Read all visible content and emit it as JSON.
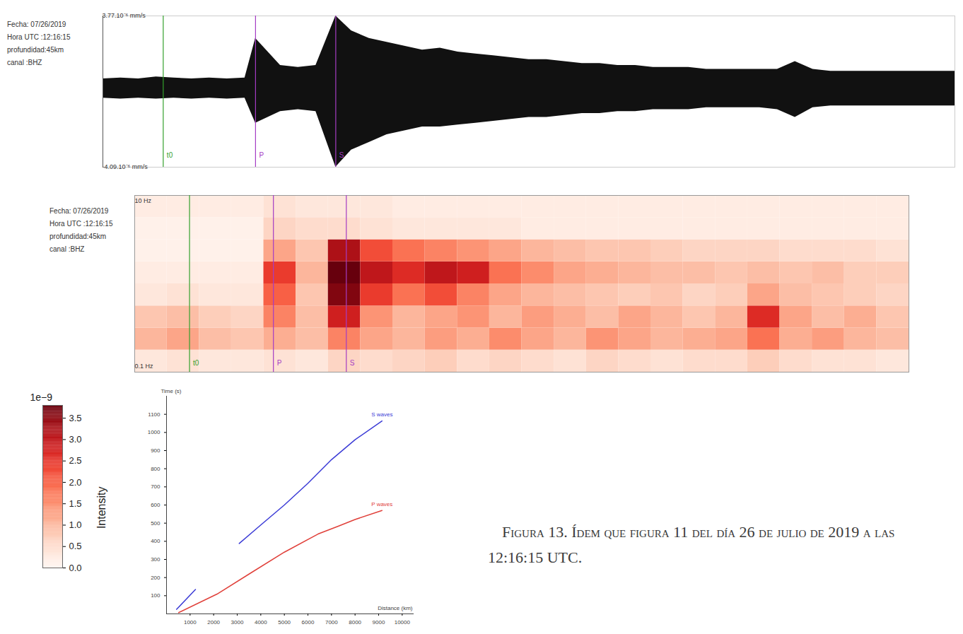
{
  "caption": "Figura 13. Ídem que figura 11 del día 26 de julio de 2019 a las 12:16:15 UTC.",
  "chart_data": [
    {
      "type": "area",
      "annotations": [
        "Fecha: 07/26/2019",
        "Hora UTC :12:16:15",
        "profundidad:45km",
        "canal :BHZ"
      ],
      "x": [
        -85,
        -60,
        -35,
        -10,
        15,
        40,
        65,
        90,
        115,
        130,
        165,
        190,
        215,
        243,
        265,
        290,
        315,
        340,
        365,
        390,
        415,
        440,
        465,
        490,
        515,
        540,
        565,
        590,
        615,
        640,
        665,
        690,
        715,
        740,
        765,
        790,
        815,
        840,
        865,
        890,
        915,
        940,
        965,
        990,
        1015,
        1040,
        1065,
        1090,
        1115
      ],
      "values_max": [
        0.5,
        0.55,
        0.5,
        0.6,
        0.55,
        0.5,
        0.55,
        0.5,
        0.55,
        2.6,
        1.2,
        1.1,
        1.2,
        3.77,
        3.0,
        2.6,
        2.4,
        2.2,
        2.0,
        2.1,
        1.9,
        1.8,
        1.7,
        1.6,
        1.5,
        1.5,
        1.4,
        1.3,
        1.3,
        1.2,
        1.2,
        1.1,
        1.1,
        1.1,
        1.0,
        1.0,
        1.0,
        1.0,
        1.0,
        1.4,
        1.0,
        0.9,
        0.9,
        0.9,
        0.9,
        0.9,
        0.9,
        0.9,
        0.9
      ],
      "values_min": [
        -0.5,
        -0.55,
        -0.5,
        -0.55,
        -0.5,
        -0.55,
        -0.5,
        -0.55,
        -0.5,
        -1.8,
        -1.2,
        -1.1,
        -1.2,
        -4.09,
        -3.2,
        -2.8,
        -2.4,
        -2.2,
        -2.0,
        -2.0,
        -1.9,
        -1.8,
        -1.7,
        -1.6,
        -1.5,
        -1.5,
        -1.4,
        -1.3,
        -1.3,
        -1.2,
        -1.2,
        -1.1,
        -1.1,
        -1.1,
        -1.0,
        -1.0,
        -1.0,
        -1.0,
        -1.1,
        -1.5,
        -1.0,
        -0.9,
        -0.9,
        -0.9,
        -0.9,
        -0.9,
        -0.9,
        -0.9,
        -0.9
      ],
      "color": "#111111",
      "xlim": [
        -85,
        1115
      ],
      "ylim": [
        -4.09,
        3.77
      ],
      "yticks": [
        {
          "value": -4.09,
          "label": "-4.09.10⁻⁶ mm/s"
        },
        {
          "value": 3.77,
          "label": "3.77.10⁻⁶ mm/s"
        }
      ],
      "tick_labels": "y",
      "markers": [
        {
          "label": "t0",
          "x": 0,
          "color": "#33a02c"
        },
        {
          "label": "P",
          "x": 130,
          "color": "#a53cc4"
        },
        {
          "label": "S",
          "x": 243,
          "color": "#a53cc4"
        }
      ]
    },
    {
      "type": "heatmap",
      "annotations": [
        "Fecha: 07/26/2019",
        "Hora UTC :12:16:15",
        "profundidad:45km",
        "canal :BHZ"
      ],
      "x_bins": [
        -85,
        -35,
        15,
        65,
        115,
        165,
        215,
        265,
        315,
        365,
        415,
        465,
        515,
        565,
        615,
        665,
        715,
        765,
        815,
        865,
        915,
        965,
        1015,
        1065,
        1115
      ],
      "y_bins": [
        0.1,
        0.178,
        0.316,
        0.562,
        1,
        1.78,
        3.16,
        5.62,
        10
      ],
      "intensity": [
        [
          0.3,
          0.4,
          0.3,
          0.3,
          0.4,
          0.3,
          0.6,
          0.5,
          0.6,
          0.7,
          0.5,
          0.6,
          0.5,
          0.4,
          0.6,
          0.5,
          0.4,
          0.5,
          0.5,
          0.7,
          0.5,
          0.4,
          0.4,
          0.3
        ],
        [
          1.0,
          1.2,
          0.9,
          0.8,
          1.1,
          0.9,
          1.6,
          1.2,
          1.0,
          1.3,
          1.1,
          1.5,
          1.2,
          1.0,
          1.4,
          1.2,
          1.0,
          1.1,
          1.2,
          1.8,
          1.1,
          1.3,
          1.0,
          0.9
        ],
        [
          0.8,
          0.9,
          0.7,
          0.6,
          1.6,
          0.9,
          2.8,
          1.4,
          1.0,
          1.2,
          1.4,
          1.0,
          1.3,
          1.1,
          0.9,
          1.2,
          1.0,
          0.8,
          1.0,
          2.6,
          1.2,
          0.9,
          1.1,
          0.8
        ],
        [
          0.3,
          0.4,
          0.3,
          0.3,
          2.0,
          0.8,
          3.6,
          2.4,
          1.8,
          2.2,
          1.6,
          1.2,
          1.0,
          0.9,
          0.8,
          0.7,
          0.8,
          0.6,
          0.7,
          1.2,
          0.9,
          0.8,
          0.7,
          0.6
        ],
        [
          0.2,
          0.2,
          0.2,
          0.2,
          2.4,
          1.0,
          3.8,
          3.0,
          2.6,
          3.0,
          2.8,
          1.8,
          1.5,
          1.2,
          1.1,
          1.0,
          0.9,
          0.9,
          0.8,
          0.9,
          0.8,
          0.9,
          0.7,
          0.7
        ],
        [
          0.1,
          0.1,
          0.1,
          0.1,
          1.2,
          0.8,
          3.2,
          2.2,
          1.8,
          1.6,
          1.4,
          1.2,
          1.0,
          0.9,
          0.8,
          0.8,
          0.7,
          0.6,
          0.6,
          0.6,
          0.5,
          0.5,
          0.5,
          0.4
        ],
        [
          0.1,
          0.1,
          0.1,
          0.1,
          0.6,
          0.5,
          0.5,
          0.4,
          0.3,
          0.3,
          0.3,
          0.3,
          0.2,
          0.2,
          0.2,
          0.2,
          0.2,
          0.2,
          0.2,
          0.2,
          0.2,
          0.2,
          0.2,
          0.2
        ],
        [
          0.2,
          0.2,
          0.2,
          0.2,
          0.4,
          0.3,
          0.3,
          0.3,
          0.2,
          0.2,
          0.2,
          0.2,
          0.2,
          0.2,
          0.2,
          0.2,
          0.2,
          0.2,
          0.2,
          0.2,
          0.2,
          0.2,
          0.2,
          0.2
        ]
      ],
      "xlim": [
        -85,
        1115
      ],
      "ylim": [
        0.1,
        10
      ],
      "log": "y",
      "yticks": [
        {
          "value": 0.1,
          "label": "0.1 Hz"
        },
        {
          "value": 10,
          "label": "10 Hz"
        }
      ],
      "tick_labels": "y",
      "markers": [
        {
          "label": "t0",
          "x": 0,
          "color": "#33a02c"
        },
        {
          "label": "P",
          "x": 130,
          "color": "#a53cc4"
        },
        {
          "label": "S",
          "x": 243,
          "color": "#a53cc4"
        }
      ],
      "colorbar": {
        "label": "Intensity",
        "scale_label": "1e−9",
        "range": [
          0,
          3.8
        ],
        "ticks": [
          {
            "value": 0,
            "label": "0.0"
          },
          {
            "value": 0.5,
            "label": "0.5"
          },
          {
            "value": 1,
            "label": "1.0"
          },
          {
            "value": 1.5,
            "label": "1.5"
          },
          {
            "value": 2,
            "label": "2.0"
          },
          {
            "value": 2.5,
            "label": "2.5"
          },
          {
            "value": 3,
            "label": "3.0"
          },
          {
            "value": 3.5,
            "label": "3.5"
          }
        ]
      }
    },
    {
      "type": "line",
      "x_label": "Distance (km)",
      "y_label": "Time (s)",
      "series": [
        {
          "name": "S waves",
          "color": "#3b3bd6",
          "x": [
            429,
            1229,
            2000,
            3086,
            4000,
            5000,
            6000,
            7000,
            8000,
            9143
          ],
          "values": [
            25,
            134,
            null,
            388,
            490,
            600,
            720,
            850,
            960,
            1063
          ]
        },
        {
          "name": "P waves",
          "color": "#e0403a",
          "x": [
            514,
            2143,
            3571,
            5000,
            6429,
            7286,
            8000,
            9143
          ],
          "values": [
            7,
            109,
            225,
            340,
            440,
            483,
            520,
            570
          ]
        }
      ],
      "xlim": [
        0,
        10500
      ],
      "ylim": [
        0,
        1200
      ],
      "xticks": [
        1000,
        2000,
        3000,
        4000,
        5000,
        6000,
        7000,
        8000,
        9000,
        10000
      ],
      "yticks": [
        100,
        200,
        300,
        400,
        500,
        600,
        700,
        800,
        900,
        1000,
        1100
      ]
    }
  ]
}
